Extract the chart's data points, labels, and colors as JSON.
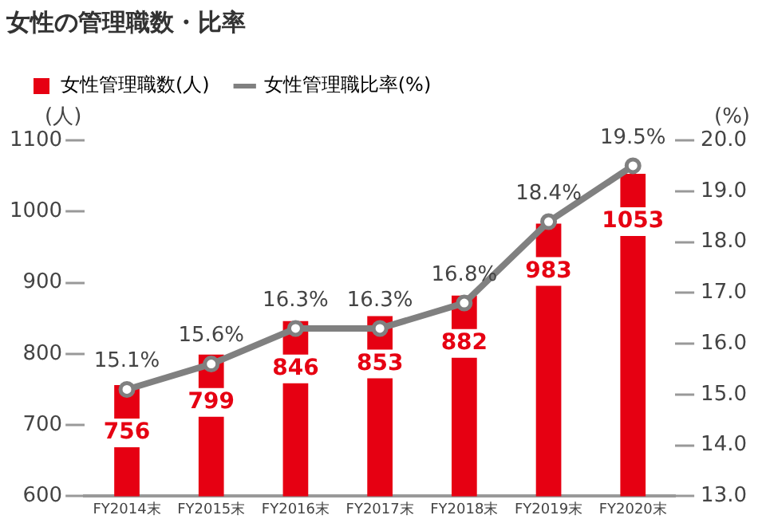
{
  "chart_data": {
    "type": "bar",
    "title": "女性の管理職数・比率",
    "ylabel": "(人)",
    "y2label": "(%)",
    "categories": [
      "FY2014末",
      "FY2015末",
      "FY2016末",
      "FY2017末",
      "FY2018末",
      "FY2019末",
      "FY2020末"
    ],
    "series": [
      {
        "name": "女性管理職数(人)",
        "color": "#e60012",
        "values": [
          756,
          799,
          846,
          853,
          882,
          983,
          1053
        ],
        "value_labels": [
          "756",
          "799",
          "846",
          "853",
          "882",
          "983",
          "1053"
        ]
      },
      {
        "name": "女性管理職比率(%)",
        "type": "line",
        "axis": "y2",
        "color": "#808080",
        "marker": "circle",
        "values": [
          15.1,
          15.6,
          16.3,
          16.3,
          16.8,
          18.4,
          19.5
        ],
        "value_labels": [
          "15.1%",
          "15.6%",
          "16.3%",
          "16.3%",
          "16.8%",
          "18.4%",
          "19.5%"
        ]
      }
    ],
    "ylim": [
      600,
      1100
    ],
    "yticks": [
      600,
      700,
      800,
      900,
      1000,
      1100
    ],
    "y2lim": [
      13.0,
      20.0
    ],
    "y2ticks": [
      {
        "value": 13,
        "label": "13.0"
      },
      {
        "value": 14,
        "label": "14.0"
      },
      {
        "value": 15,
        "label": "15.0"
      },
      {
        "value": 16,
        "label": "16.0"
      },
      {
        "value": 17,
        "label": "17.0"
      },
      {
        "value": 18,
        "label": "18.0"
      },
      {
        "value": 19,
        "label": "19.0"
      },
      {
        "value": 20,
        "label": "20.0"
      }
    ],
    "grid": false,
    "legend": "top left"
  }
}
